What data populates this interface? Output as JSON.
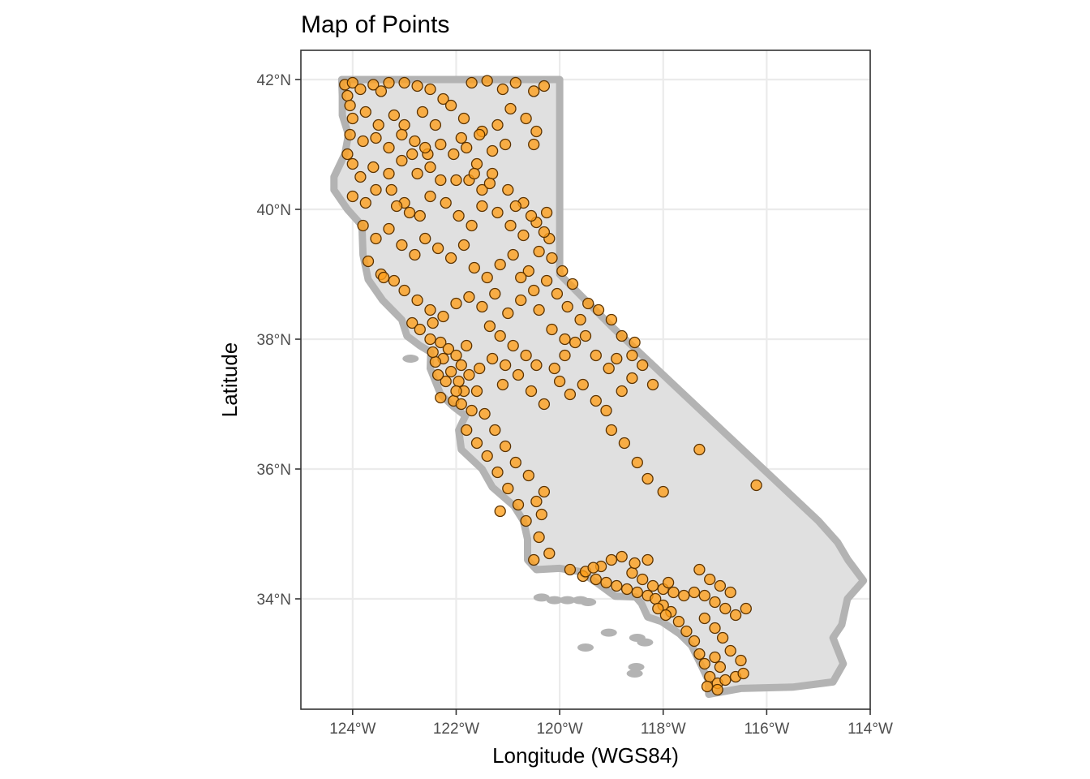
{
  "chart_data": {
    "type": "scatter",
    "title": "Map of Points",
    "xlabel": "Longitude (WGS84)",
    "ylabel": "Latitude",
    "xlim": [
      -125.0,
      -114.0
    ],
    "ylim": [
      32.3,
      42.45
    ],
    "grid": true,
    "legend": "none",
    "x_ticks": [
      {
        "value": -124,
        "label": "124°W"
      },
      {
        "value": -122,
        "label": "122°W"
      },
      {
        "value": -120,
        "label": "120°W"
      },
      {
        "value": -118,
        "label": "118°W"
      },
      {
        "value": -116,
        "label": "116°W"
      },
      {
        "value": -114,
        "label": "114°W"
      }
    ],
    "y_ticks": [
      {
        "value": 34,
        "label": "34°N"
      },
      {
        "value": 36,
        "label": "36°N"
      },
      {
        "value": 38,
        "label": "38°N"
      },
      {
        "value": 40,
        "label": "40°N"
      },
      {
        "value": 42,
        "label": "42°N"
      }
    ],
    "colors": {
      "state_fill": "#e0e0e0",
      "state_border": "#b3b3b3",
      "point_fill": "#ff9f1a",
      "point_stroke": "#5a3200",
      "panel_border": "#333333",
      "grid": "#ebebeb"
    },
    "boundary": [
      [
        -124.21,
        42.0
      ],
      [
        -123.0,
        42.0
      ],
      [
        -122.0,
        42.0
      ],
      [
        -121.0,
        42.0
      ],
      [
        -120.0,
        42.0
      ],
      [
        -120.0,
        41.0
      ],
      [
        -120.0,
        40.0
      ],
      [
        -120.0,
        39.0
      ],
      [
        -119.0,
        38.2
      ],
      [
        -118.0,
        37.45
      ],
      [
        -117.0,
        36.7
      ],
      [
        -116.0,
        35.95
      ],
      [
        -115.0,
        35.2
      ],
      [
        -114.63,
        34.87
      ],
      [
        -114.43,
        34.6
      ],
      [
        -114.13,
        34.28
      ],
      [
        -114.44,
        34.0
      ],
      [
        -114.55,
        33.6
      ],
      [
        -114.72,
        33.4
      ],
      [
        -114.52,
        33.0
      ],
      [
        -114.72,
        32.72
      ],
      [
        -115.5,
        32.64
      ],
      [
        -116.5,
        32.62
      ],
      [
        -117.12,
        32.53
      ],
      [
        -117.13,
        32.75
      ],
      [
        -117.28,
        33.0
      ],
      [
        -117.45,
        33.28
      ],
      [
        -117.68,
        33.46
      ],
      [
        -118.03,
        33.65
      ],
      [
        -118.3,
        33.72
      ],
      [
        -118.42,
        33.93
      ],
      [
        -118.53,
        34.03
      ],
      [
        -118.93,
        34.04
      ],
      [
        -119.27,
        34.24
      ],
      [
        -119.6,
        34.42
      ],
      [
        -120.0,
        34.47
      ],
      [
        -120.45,
        34.45
      ],
      [
        -120.62,
        34.6
      ],
      [
        -120.62,
        34.92
      ],
      [
        -120.7,
        35.2
      ],
      [
        -120.88,
        35.43
      ],
      [
        -121.3,
        35.72
      ],
      [
        -121.5,
        36.0
      ],
      [
        -121.9,
        36.3
      ],
      [
        -121.95,
        36.6
      ],
      [
        -121.82,
        36.82
      ],
      [
        -122.05,
        36.96
      ],
      [
        -122.3,
        37.15
      ],
      [
        -122.5,
        37.55
      ],
      [
        -122.49,
        37.8
      ],
      [
        -122.7,
        37.9
      ],
      [
        -122.95,
        38.05
      ],
      [
        -123.05,
        38.3
      ],
      [
        -123.42,
        38.6
      ],
      [
        -123.7,
        38.92
      ],
      [
        -123.8,
        39.3
      ],
      [
        -123.82,
        39.75
      ],
      [
        -124.1,
        40.0
      ],
      [
        -124.36,
        40.3
      ],
      [
        -124.36,
        40.5
      ],
      [
        -124.15,
        40.85
      ],
      [
        -124.08,
        41.15
      ],
      [
        -124.2,
        41.45
      ],
      [
        -124.2,
        41.75
      ],
      [
        -124.21,
        42.0
      ]
    ],
    "islands": [
      [
        -120.35,
        34.02
      ],
      [
        -120.1,
        33.98
      ],
      [
        -119.85,
        33.98
      ],
      [
        -119.6,
        33.98
      ],
      [
        -119.45,
        33.95
      ],
      [
        -119.05,
        33.48
      ],
      [
        -118.5,
        33.4
      ],
      [
        -118.35,
        33.33
      ],
      [
        -118.55,
        32.85
      ],
      [
        -118.52,
        32.95
      ],
      [
        -119.5,
        33.25
      ],
      [
        -122.88,
        37.7
      ]
    ],
    "points": [
      [
        -124.15,
        41.92
      ],
      [
        -124.0,
        41.95
      ],
      [
        -124.1,
        41.75
      ],
      [
        -124.05,
        41.6
      ],
      [
        -123.85,
        41.85
      ],
      [
        -123.6,
        41.92
      ],
      [
        -123.45,
        41.82
      ],
      [
        -123.3,
        41.95
      ],
      [
        -123.0,
        41.95
      ],
      [
        -122.75,
        41.9
      ],
      [
        -122.5,
        41.85
      ],
      [
        -122.25,
        41.7
      ],
      [
        -121.7,
        41.95
      ],
      [
        -121.4,
        41.98
      ],
      [
        -121.1,
        41.85
      ],
      [
        -120.85,
        41.95
      ],
      [
        -120.5,
        41.82
      ],
      [
        -120.3,
        41.9
      ],
      [
        -124.0,
        41.4
      ],
      [
        -123.75,
        41.5
      ],
      [
        -123.5,
        41.3
      ],
      [
        -123.2,
        41.45
      ],
      [
        -123.0,
        41.3
      ],
      [
        -122.65,
        41.5
      ],
      [
        -122.4,
        41.3
      ],
      [
        -122.1,
        41.6
      ],
      [
        -121.85,
        41.4
      ],
      [
        -121.5,
        41.2
      ],
      [
        -121.2,
        41.3
      ],
      [
        -120.95,
        41.55
      ],
      [
        -120.65,
        41.4
      ],
      [
        -120.45,
        41.2
      ],
      [
        -124.05,
        41.15
      ],
      [
        -123.8,
        41.05
      ],
      [
        -123.55,
        41.1
      ],
      [
        -123.3,
        40.95
      ],
      [
        -123.05,
        41.15
      ],
      [
        -122.8,
        41.05
      ],
      [
        -122.55,
        40.85
      ],
      [
        -122.3,
        41.0
      ],
      [
        -122.05,
        40.85
      ],
      [
        -121.8,
        40.95
      ],
      [
        -121.55,
        41.15
      ],
      [
        -121.3,
        40.9
      ],
      [
        -121.05,
        41.0
      ],
      [
        -120.5,
        41.0
      ],
      [
        -124.1,
        40.85
      ],
      [
        -124.0,
        40.7
      ],
      [
        -123.85,
        40.5
      ],
      [
        -123.6,
        40.65
      ],
      [
        -123.3,
        40.55
      ],
      [
        -123.05,
        40.75
      ],
      [
        -122.75,
        40.55
      ],
      [
        -122.5,
        40.65
      ],
      [
        -122.3,
        40.45
      ],
      [
        -122.0,
        40.45
      ],
      [
        -121.75,
        40.45
      ],
      [
        -121.5,
        40.3
      ],
      [
        -121.3,
        40.55
      ],
      [
        -121.0,
        40.3
      ],
      [
        -120.7,
        40.1
      ],
      [
        -124.0,
        40.2
      ],
      [
        -123.75,
        40.1
      ],
      [
        -123.55,
        40.3
      ],
      [
        -123.25,
        40.3
      ],
      [
        -123.0,
        40.1
      ],
      [
        -122.7,
        39.9
      ],
      [
        -122.5,
        40.2
      ],
      [
        -122.2,
        40.1
      ],
      [
        -121.95,
        39.9
      ],
      [
        -121.7,
        39.75
      ],
      [
        -121.5,
        40.05
      ],
      [
        -121.2,
        39.95
      ],
      [
        -120.95,
        39.75
      ],
      [
        -120.7,
        39.6
      ],
      [
        -120.45,
        39.8
      ],
      [
        -120.25,
        39.95
      ],
      [
        -123.8,
        39.75
      ],
      [
        -123.55,
        39.55
      ],
      [
        -123.3,
        39.7
      ],
      [
        -123.05,
        39.45
      ],
      [
        -122.8,
        39.3
      ],
      [
        -122.6,
        39.55
      ],
      [
        -122.35,
        39.4
      ],
      [
        -122.1,
        39.25
      ],
      [
        -121.85,
        39.45
      ],
      [
        -121.65,
        39.1
      ],
      [
        -121.4,
        38.95
      ],
      [
        -121.15,
        39.15
      ],
      [
        -120.9,
        39.3
      ],
      [
        -120.6,
        39.05
      ],
      [
        -120.4,
        39.35
      ],
      [
        -120.2,
        39.55
      ],
      [
        -123.7,
        39.2
      ],
      [
        -123.45,
        39.0
      ],
      [
        -123.2,
        38.9
      ],
      [
        -123.0,
        38.75
      ],
      [
        -122.75,
        38.6
      ],
      [
        -122.5,
        38.45
      ],
      [
        -122.25,
        38.35
      ],
      [
        -122.0,
        38.55
      ],
      [
        -121.75,
        38.65
      ],
      [
        -121.5,
        38.5
      ],
      [
        -121.25,
        38.7
      ],
      [
        -121.0,
        38.4
      ],
      [
        -120.75,
        38.6
      ],
      [
        -120.5,
        38.75
      ],
      [
        -120.25,
        38.9
      ],
      [
        -120.05,
        38.7
      ],
      [
        -119.85,
        38.5
      ],
      [
        -119.6,
        38.3
      ],
      [
        -122.5,
        38.0
      ],
      [
        -122.3,
        37.95
      ],
      [
        -122.15,
        37.85
      ],
      [
        -122.0,
        37.75
      ],
      [
        -121.9,
        37.6
      ],
      [
        -122.25,
        37.7
      ],
      [
        -122.4,
        37.65
      ],
      [
        -122.1,
        37.5
      ],
      [
        -121.95,
        37.35
      ],
      [
        -122.2,
        37.35
      ],
      [
        -121.85,
        37.2
      ],
      [
        -122.05,
        37.05
      ],
      [
        -121.75,
        37.45
      ],
      [
        -121.6,
        37.2
      ],
      [
        -121.8,
        37.9
      ],
      [
        -122.35,
        37.45
      ],
      [
        -122.0,
        37.2
      ],
      [
        -121.9,
        37.0
      ],
      [
        -121.7,
        36.9
      ],
      [
        -121.55,
        37.55
      ],
      [
        -121.3,
        37.7
      ],
      [
        -121.05,
        37.6
      ],
      [
        -120.8,
        37.45
      ],
      [
        -121.1,
        37.3
      ],
      [
        -120.55,
        37.2
      ],
      [
        -120.3,
        37.0
      ],
      [
        -120.0,
        37.35
      ],
      [
        -119.8,
        37.15
      ],
      [
        -119.55,
        37.3
      ],
      [
        -119.3,
        37.05
      ],
      [
        -119.1,
        36.9
      ],
      [
        -118.8,
        37.2
      ],
      [
        -118.6,
        37.4
      ],
      [
        -118.4,
        37.6
      ],
      [
        -118.2,
        37.3
      ],
      [
        -119.0,
        36.6
      ],
      [
        -118.75,
        36.4
      ],
      [
        -118.5,
        36.1
      ],
      [
        -118.3,
        35.85
      ],
      [
        -118.0,
        35.65
      ],
      [
        -117.3,
        36.3
      ],
      [
        -116.2,
        35.75
      ],
      [
        -121.8,
        36.6
      ],
      [
        -121.6,
        36.4
      ],
      [
        -121.4,
        36.2
      ],
      [
        -121.2,
        35.95
      ],
      [
        -121.0,
        35.7
      ],
      [
        -120.8,
        35.45
      ],
      [
        -120.65,
        35.2
      ],
      [
        -120.4,
        34.95
      ],
      [
        -120.2,
        34.7
      ],
      [
        -119.8,
        34.45
      ],
      [
        -119.55,
        34.35
      ],
      [
        -119.3,
        34.3
      ],
      [
        -119.1,
        34.25
      ],
      [
        -118.9,
        34.2
      ],
      [
        -118.7,
        34.15
      ],
      [
        -118.5,
        34.1
      ],
      [
        -118.3,
        34.05
      ],
      [
        -118.15,
        34.0
      ],
      [
        -118.0,
        33.9
      ],
      [
        -117.85,
        33.8
      ],
      [
        -117.7,
        33.65
      ],
      [
        -117.55,
        33.5
      ],
      [
        -117.4,
        33.35
      ],
      [
        -117.3,
        33.15
      ],
      [
        -117.2,
        33.0
      ],
      [
        -117.1,
        32.8
      ],
      [
        -116.95,
        32.7
      ],
      [
        -116.8,
        32.75
      ],
      [
        -116.6,
        32.8
      ],
      [
        -118.6,
        34.4
      ],
      [
        -118.4,
        34.3
      ],
      [
        -118.2,
        34.2
      ],
      [
        -118.0,
        34.15
      ],
      [
        -117.8,
        34.1
      ],
      [
        -117.6,
        34.05
      ],
      [
        -117.4,
        34.1
      ],
      [
        -117.2,
        34.05
      ],
      [
        -117.0,
        33.95
      ],
      [
        -116.8,
        33.85
      ],
      [
        -116.6,
        33.75
      ],
      [
        -116.4,
        33.85
      ],
      [
        -119.2,
        34.5
      ],
      [
        -119.0,
        34.6
      ],
      [
        -118.8,
        34.65
      ],
      [
        -118.55,
        34.55
      ],
      [
        -117.3,
        34.45
      ],
      [
        -117.1,
        34.3
      ],
      [
        -116.9,
        34.2
      ],
      [
        -116.7,
        34.1
      ],
      [
        -117.2,
        33.7
      ],
      [
        -117.0,
        33.55
      ],
      [
        -116.85,
        33.4
      ],
      [
        -116.7,
        33.2
      ],
      [
        -116.5,
        33.05
      ],
      [
        -116.45,
        32.85
      ],
      [
        -117.0,
        33.1
      ],
      [
        -116.9,
        32.95
      ],
      [
        -117.15,
        32.65
      ],
      [
        -116.95,
        32.6
      ],
      [
        -119.5,
        34.42
      ],
      [
        -119.35,
        34.48
      ],
      [
        -118.1,
        33.85
      ],
      [
        -117.95,
        33.75
      ],
      [
        -117.9,
        34.25
      ],
      [
        -118.3,
        34.6
      ],
      [
        -120.5,
        34.6
      ],
      [
        -120.35,
        35.3
      ],
      [
        -121.15,
        35.35
      ],
      [
        -120.45,
        35.5
      ],
      [
        -122.85,
        38.25
      ],
      [
        -123.4,
        38.95
      ],
      [
        -122.7,
        38.15
      ],
      [
        -122.45,
        38.25
      ],
      [
        -121.35,
        38.2
      ],
      [
        -121.15,
        38.05
      ],
      [
        -120.9,
        37.9
      ],
      [
        -120.65,
        37.75
      ],
      [
        -120.45,
        37.6
      ],
      [
        -120.1,
        37.55
      ],
      [
        -119.9,
        37.75
      ],
      [
        -119.7,
        37.95
      ],
      [
        -119.5,
        38.05
      ],
      [
        -119.3,
        37.75
      ],
      [
        -119.05,
        37.55
      ],
      [
        -118.9,
        37.7
      ],
      [
        -118.6,
        37.75
      ],
      [
        -122.45,
        37.8
      ],
      [
        -122.3,
        37.1
      ],
      [
        -121.45,
        36.85
      ],
      [
        -121.25,
        36.6
      ],
      [
        -121.05,
        36.35
      ],
      [
        -120.85,
        36.1
      ],
      [
        -120.6,
        35.9
      ],
      [
        -120.3,
        35.65
      ],
      [
        -122.85,
        40.85
      ],
      [
        -122.6,
        40.95
      ],
      [
        -121.6,
        40.7
      ],
      [
        -121.35,
        40.4
      ],
      [
        -120.85,
        40.05
      ],
      [
        -120.55,
        39.9
      ],
      [
        -120.3,
        39.65
      ],
      [
        -120.15,
        39.25
      ],
      [
        -119.95,
        39.05
      ],
      [
        -119.75,
        38.85
      ],
      [
        -119.45,
        38.55
      ],
      [
        -119.25,
        38.45
      ],
      [
        -119.0,
        38.3
      ],
      [
        -118.8,
        38.05
      ],
      [
        -118.55,
        37.95
      ],
      [
        -122.9,
        39.95
      ],
      [
        -123.15,
        40.05
      ],
      [
        -121.9,
        41.1
      ],
      [
        -121.65,
        40.55
      ],
      [
        -120.75,
        38.95
      ],
      [
        -120.4,
        38.45
      ],
      [
        -120.15,
        38.15
      ],
      [
        -119.9,
        38.0
      ]
    ]
  }
}
